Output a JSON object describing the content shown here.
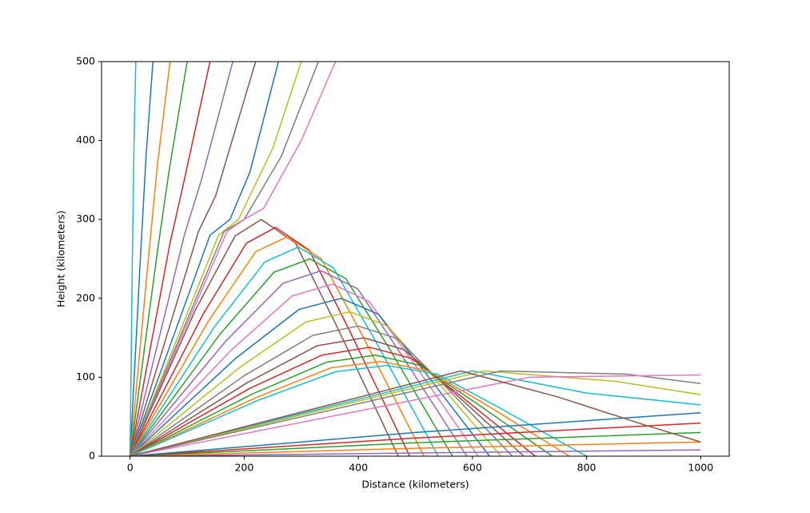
{
  "chart_data": {
    "type": "line",
    "xlabel": "Distance (kilometers)",
    "ylabel": "Height (kilometers)",
    "xlim": [
      -50,
      1050
    ],
    "ylim": [
      0,
      500
    ],
    "xticks": [
      0,
      200,
      400,
      600,
      800,
      1000
    ],
    "yticks": [
      0,
      100,
      200,
      300,
      400,
      500
    ],
    "series": [
      {
        "color": "#17becf",
        "x": [
          0,
          4,
          7,
          10
        ],
        "values": [
          0,
          250,
          400,
          500
        ]
      },
      {
        "color": "#1f77b4",
        "x": [
          0,
          18,
          28,
          40
        ],
        "values": [
          0,
          250,
          380,
          500
        ]
      },
      {
        "color": "#ff7f0e",
        "x": [
          0,
          32,
          48,
          70
        ],
        "values": [
          0,
          250,
          370,
          500
        ]
      },
      {
        "color": "#2ca02c",
        "x": [
          0,
          48,
          68,
          100
        ],
        "values": [
          0,
          260,
          360,
          500
        ]
      },
      {
        "color": "#d62728",
        "x": [
          0,
          70,
          95,
          140
        ],
        "values": [
          0,
          270,
          350,
          500
        ]
      },
      {
        "color": "#9467bd",
        "x": [
          0,
          95,
          125,
          180
        ],
        "values": [
          0,
          280,
          350,
          500
        ]
      },
      {
        "color": "#8c564b",
        "x": [
          0,
          120,
          150,
          220
        ],
        "values": [
          0,
          285,
          330,
          500
        ]
      },
      {
        "color": "#1f77b4",
        "x": [
          0,
          140,
          175,
          210,
          260
        ],
        "values": [
          0,
          280,
          300,
          360,
          500
        ]
      },
      {
        "color": "#bcbd22",
        "x": [
          0,
          155,
          190,
          250,
          300
        ],
        "values": [
          0,
          280,
          300,
          390,
          500
        ]
      },
      {
        "color": "#7f7f7f",
        "x": [
          0,
          165,
          200,
          265,
          330
        ],
        "values": [
          0,
          285,
          300,
          380,
          500
        ]
      },
      {
        "color": "#e377c2",
        "x": [
          0,
          170,
          200,
          234,
          300,
          360
        ],
        "values": [
          0,
          285,
          300,
          314,
          400,
          500
        ]
      },
      {
        "color": "#8c564b",
        "x": [
          0,
          115,
          184,
          230,
          290,
          362,
          470
        ],
        "values": [
          0,
          186,
          279,
          300,
          270,
          165,
          0
        ]
      },
      {
        "color": "#d62728",
        "x": [
          0,
          128,
          204,
          255,
          314,
          384,
          490
        ],
        "values": [
          0,
          180,
          270,
          290,
          261,
          160,
          0
        ]
      },
      {
        "color": "#ff7f0e",
        "x": [
          0,
          138,
          220,
          275,
          335,
          407,
          515
        ],
        "values": [
          0,
          172,
          259,
          278,
          250,
          153,
          0
        ]
      },
      {
        "color": "#17becf",
        "x": [
          0,
          148,
          236,
          295,
          356,
          430,
          540
        ],
        "values": [
          0,
          164,
          246,
          265,
          239,
          146,
          0
        ]
      },
      {
        "color": "#2ca02c",
        "x": [
          0,
          158,
          252,
          315,
          378,
          453,
          565
        ],
        "values": [
          0,
          155,
          233,
          250,
          225,
          138,
          0
        ]
      },
      {
        "color": "#9467bd",
        "x": [
          0,
          168,
          268,
          335,
          399,
          475,
          590
        ],
        "values": [
          0,
          146,
          219,
          235,
          212,
          129,
          0
        ]
      },
      {
        "color": "#e377c2",
        "x": [
          0,
          178,
          284,
          355,
          419,
          495,
          610
        ],
        "values": [
          0,
          135,
          203,
          218,
          196,
          120,
          0
        ]
      },
      {
        "color": "#1f77b4",
        "x": [
          0,
          185,
          296,
          370,
          435,
          513,
          630
        ],
        "values": [
          0,
          124,
          186,
          200,
          180,
          110,
          0
        ]
      },
      {
        "color": "#bcbd22",
        "x": [
          0,
          193,
          308,
          385,
          451,
          531,
          650
        ],
        "values": [
          0,
          113,
          170,
          183,
          165,
          101,
          0
        ]
      },
      {
        "color": "#7f7f7f",
        "x": [
          0,
          200,
          320,
          400,
          468,
          549,
          670
        ],
        "values": [
          0,
          102,
          153,
          165,
          149,
          91,
          0
        ]
      },
      {
        "color": "#8c564b",
        "x": [
          0,
          205,
          328,
          410,
          480,
          564,
          690
        ],
        "values": [
          0,
          93,
          140,
          150,
          135,
          83,
          0
        ]
      },
      {
        "color": "#d62728",
        "x": [
          0,
          210,
          336,
          420,
          493,
          580,
          710
        ],
        "values": [
          0,
          86,
          128,
          138,
          124,
          76,
          0
        ]
      },
      {
        "color": "#2ca02c",
        "x": [
          0,
          215,
          344,
          430,
          508,
          601,
          740
        ],
        "values": [
          0,
          79,
          119,
          128,
          115,
          70,
          0
        ]
      },
      {
        "color": "#ff7f0e",
        "x": [
          0,
          220,
          352,
          440,
          523,
          622,
          770
        ],
        "values": [
          0,
          74,
          112,
          120,
          108,
          66,
          0
        ]
      },
      {
        "color": "#17becf",
        "x": [
          0,
          225,
          360,
          450,
          538,
          643,
          800
        ],
        "values": [
          0,
          71,
          107,
          115,
          104,
          63,
          0
        ]
      },
      {
        "color": "#9467bd",
        "x": [
          0,
          500,
          1000
        ],
        "values": [
          0,
          4,
          8
        ]
      },
      {
        "color": "#ff7f0e",
        "x": [
          0,
          500,
          1000
        ],
        "values": [
          0,
          10,
          18
        ]
      },
      {
        "color": "#2ca02c",
        "x": [
          0,
          500,
          1000
        ],
        "values": [
          0,
          17,
          30
        ]
      },
      {
        "color": "#d62728",
        "x": [
          0,
          500,
          1000
        ],
        "values": [
          0,
          23,
          42
        ]
      },
      {
        "color": "#1f77b4",
        "x": [
          0,
          500,
          1000
        ],
        "values": [
          0,
          30,
          55
        ]
      },
      {
        "color": "#17becf",
        "x": [
          0,
          600,
          800,
          1000
        ],
        "values": [
          0,
          108,
          80,
          65
        ]
      },
      {
        "color": "#bcbd22",
        "x": [
          0,
          620,
          850,
          1000
        ],
        "values": [
          0,
          108,
          95,
          78
        ]
      },
      {
        "color": "#7f7f7f",
        "x": [
          0,
          650,
          870,
          1000
        ],
        "values": [
          0,
          108,
          104,
          92
        ]
      },
      {
        "color": "#e377c2",
        "x": [
          0,
          700,
          1000
        ],
        "values": [
          0,
          100,
          103
        ]
      },
      {
        "color": "#8c564b",
        "x": [
          0,
          580,
          750,
          900,
          1000
        ],
        "values": [
          0,
          108,
          75,
          40,
          18
        ]
      }
    ]
  }
}
